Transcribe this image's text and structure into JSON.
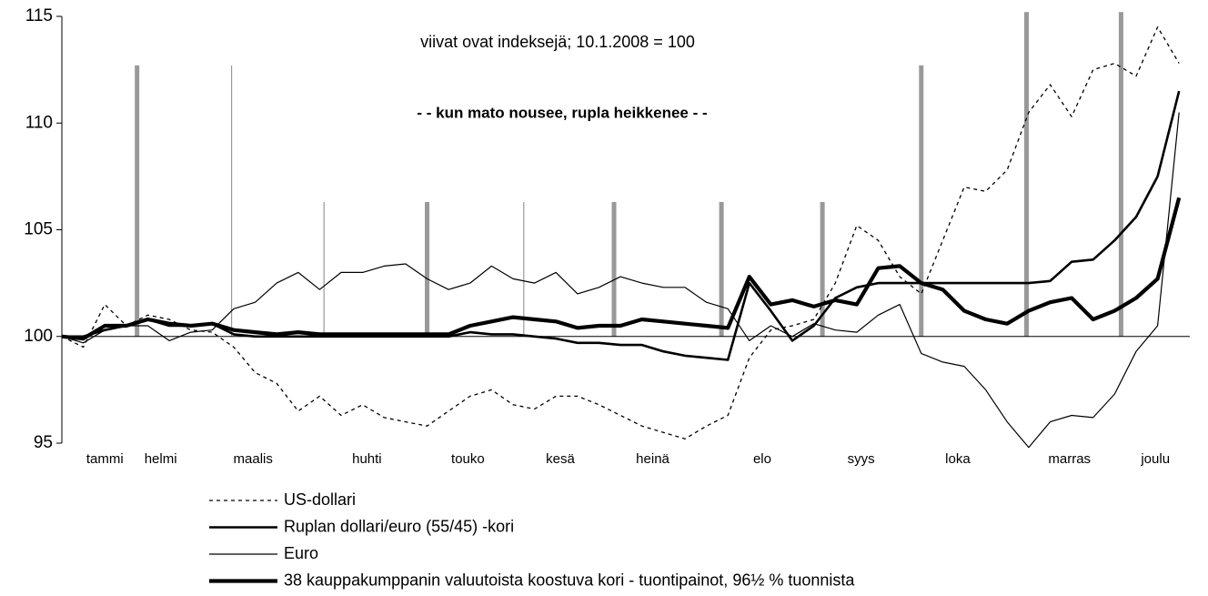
{
  "chart_data": {
    "type": "line",
    "annotations": [
      "viivat ovat indeksejä;  10.1.2008 = 100",
      "- - kun mato nousee, rupla heikkenee - -"
    ],
    "x": [
      0,
      1,
      2,
      3,
      4,
      5,
      6,
      7,
      8,
      9,
      10,
      11,
      12,
      13,
      14,
      15,
      16,
      17,
      18,
      19,
      20,
      21,
      22,
      23,
      24,
      25,
      26,
      27,
      28,
      29,
      30,
      31,
      32,
      33,
      34,
      35,
      36,
      37,
      38,
      39,
      40,
      41,
      42,
      43,
      44,
      45,
      46,
      47,
      48,
      49,
      50,
      51,
      52
    ],
    "xlim": [
      0,
      52.5
    ],
    "xticks": [
      {
        "value": 2.0,
        "label": "tammi"
      },
      {
        "value": 4.6,
        "label": "helmi"
      },
      {
        "value": 8.9,
        "label": "maalis"
      },
      {
        "value": 14.2,
        "label": "huhti"
      },
      {
        "value": 18.9,
        "label": "touko"
      },
      {
        "value": 23.2,
        "label": "kesä"
      },
      {
        "value": 27.5,
        "label": "heinä"
      },
      {
        "value": 32.6,
        "label": "elo"
      },
      {
        "value": 37.2,
        "label": "syys"
      },
      {
        "value": 41.7,
        "label": "loka"
      },
      {
        "value": 46.9,
        "label": "marras"
      },
      {
        "value": 50.9,
        "label": "joulu"
      }
    ],
    "ylim": [
      95,
      115
    ],
    "yticks": [
      95,
      100,
      105,
      110,
      115
    ],
    "baseline": 100,
    "vertical_lines": [
      {
        "x": 3.5,
        "top": 112.7,
        "heavy": true
      },
      {
        "x": 7.9,
        "top": 112.7,
        "heavy": false
      },
      {
        "x": 12.2,
        "top": 106.3,
        "heavy": false
      },
      {
        "x": 17.0,
        "top": 106.3,
        "heavy": true
      },
      {
        "x": 21.5,
        "top": 106.3,
        "heavy": false
      },
      {
        "x": 25.7,
        "top": 106.3,
        "heavy": true
      },
      {
        "x": 30.7,
        "top": 106.3,
        "heavy": true
      },
      {
        "x": 35.4,
        "top": 106.3,
        "heavy": true
      },
      {
        "x": 40.0,
        "top": 112.7,
        "heavy": true
      },
      {
        "x": 44.9,
        "top": 115.2,
        "heavy": true
      },
      {
        "x": 49.3,
        "top": 115.2,
        "heavy": true
      }
    ],
    "series": [
      {
        "name": "US-dollari",
        "color": "#000000",
        "width": 1.3,
        "dash": "dotted",
        "values": [
          100,
          99.5,
          101.5,
          100.5,
          101,
          100.8,
          100.3,
          100.2,
          99.5,
          98.3,
          97.8,
          96.5,
          97.2,
          96.3,
          96.8,
          96.2,
          96,
          95.8,
          96.5,
          97.2,
          97.5,
          96.8,
          96.6,
          97.2,
          97.2,
          96.8,
          96.3,
          95.8,
          95.5,
          95.2,
          95.8,
          96.3,
          99,
          100.3,
          100.5,
          100.8,
          102.5,
          105.2,
          104.5,
          102.8,
          102,
          104.5,
          107,
          106.8,
          107.8,
          110.5,
          111.8,
          110.3,
          112.5,
          112.8,
          112.2,
          114.5,
          112.8
        ]
      },
      {
        "name": "Ruplan dollari/euro (55/45) -kori",
        "color": "#000000",
        "width": 2.6,
        "dash": "solid",
        "values": [
          100,
          100,
          100.3,
          100.5,
          100.8,
          100.5,
          100.5,
          100.6,
          100.1,
          100,
          100,
          100,
          100,
          100,
          100,
          100,
          100,
          100,
          100,
          100.2,
          100.1,
          100.1,
          100,
          99.9,
          99.7,
          99.7,
          99.6,
          99.6,
          99.3,
          99.1,
          99,
          98.9,
          102.5,
          101.2,
          99.8,
          100.5,
          101.8,
          102.3,
          102.5,
          102.5,
          102.5,
          102.5,
          102.5,
          102.5,
          102.5,
          102.5,
          102.6,
          103.5,
          103.6,
          104.5,
          105.6,
          107.5,
          111.5
        ]
      },
      {
        "name": "Euro",
        "color": "#000000",
        "width": 1.2,
        "dash": "solid",
        "values": [
          100,
          99.7,
          100.3,
          100.5,
          100.5,
          99.8,
          100.2,
          100.3,
          101.3,
          101.6,
          102.5,
          103,
          102.2,
          103,
          103,
          103.3,
          103.4,
          102.7,
          102.2,
          102.5,
          103.3,
          102.7,
          102.5,
          103,
          102,
          102.3,
          102.8,
          102.5,
          102.3,
          102.3,
          101.6,
          101.3,
          99.8,
          100.5,
          100,
          100.6,
          100.3,
          100.2,
          101,
          101.5,
          99.2,
          98.8,
          98.6,
          97.5,
          96,
          94.8,
          96,
          96.3,
          96.2,
          97.3,
          99.3,
          100.5,
          110.5
        ]
      },
      {
        "name": "38 kauppakumppanin valuutoista koostuva kori - tuontipainot, 96½ % tuonnista",
        "color": "#000000",
        "width": 4.2,
        "dash": "solid",
        "values": [
          100,
          99.9,
          100.5,
          100.5,
          100.8,
          100.6,
          100.5,
          100.6,
          100.3,
          100.2,
          100.1,
          100.2,
          100.1,
          100.1,
          100.1,
          100.1,
          100.1,
          100.1,
          100.1,
          100.5,
          100.7,
          100.9,
          100.8,
          100.7,
          100.4,
          100.5,
          100.5,
          100.8,
          100.7,
          100.6,
          100.5,
          100.4,
          102.8,
          101.5,
          101.7,
          101.4,
          101.7,
          101.5,
          103.2,
          103.3,
          102.5,
          102.2,
          101.2,
          100.8,
          100.6,
          101.2,
          101.6,
          101.8,
          100.8,
          101.2,
          101.8,
          102.7,
          106.5
        ]
      }
    ]
  }
}
